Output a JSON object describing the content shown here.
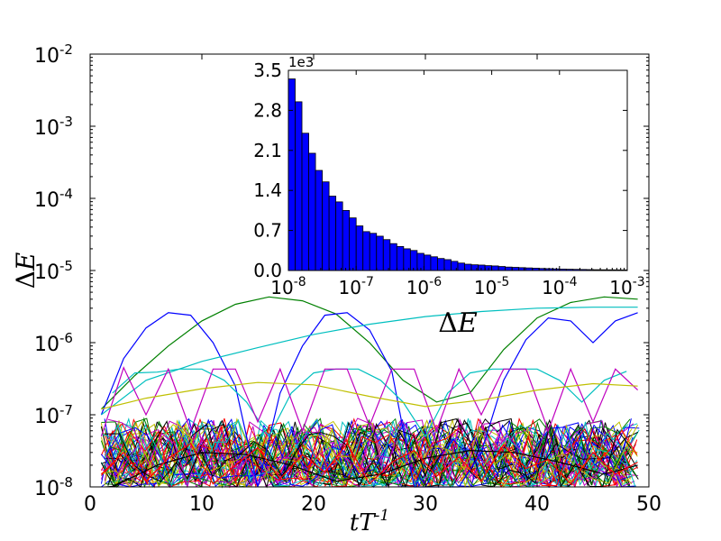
{
  "chart_data": [
    {
      "type": "line",
      "xlabel": "tT^{-1}",
      "ylabel": "ΔE",
      "xlim": [
        0,
        50
      ],
      "ylim": [
        1e-08,
        0.01
      ],
      "yscale": "log",
      "xticks": [
        0,
        10,
        20,
        30,
        40,
        50
      ],
      "xtick_labels": [
        "0",
        "10",
        "20",
        "30",
        "40",
        "50"
      ],
      "yticks": [
        {
          "base": "10",
          "exp": "-8"
        },
        {
          "base": "10",
          "exp": "-7"
        },
        {
          "base": "10",
          "exp": "-6"
        },
        {
          "base": "10",
          "exp": "-5"
        },
        {
          "base": "10",
          "exp": "-4"
        },
        {
          "base": "10",
          "exp": "-3"
        },
        {
          "base": "10",
          "exp": "-2"
        }
      ],
      "series": [
        {
          "name": "green arc",
          "color": "#008000",
          "x": [
            1,
            4,
            7,
            10,
            13,
            16,
            19,
            22,
            25,
            28,
            31,
            34,
            37,
            40,
            43,
            46,
            49
          ],
          "y": [
            1.2e-07,
            3.5e-07,
            9e-07,
            2e-06,
            3.4e-06,
            4.3e-06,
            3.8e-06,
            2.5e-06,
            1e-06,
            3e-07,
            1.5e-07,
            2e-07,
            8e-07,
            2.2e-06,
            3.6e-06,
            4.3e-06,
            4e-06
          ]
        },
        {
          "name": "blue arcs",
          "color": "#0000ff",
          "x": [
            1,
            3,
            5,
            7,
            9,
            11,
            13,
            15,
            17,
            19,
            21,
            23,
            25,
            27,
            29,
            31,
            33,
            35,
            37,
            39,
            41,
            43,
            45,
            47,
            49
          ],
          "y": [
            1e-07,
            6e-07,
            1.6e-06,
            2.6e-06,
            2.4e-06,
            1e-06,
            2.5e-07,
            1e-08,
            2e-07,
            9e-07,
            2.4e-06,
            2.6e-06,
            1.5e-06,
            4e-07,
            1e-08,
            1e-08,
            1e-08,
            3e-08,
            3e-07,
            1.1e-06,
            2.2e-06,
            2e-06,
            1e-06,
            2e-06,
            2.6e-06
          ]
        },
        {
          "name": "cyan rise",
          "color": "#00bfbf",
          "x": [
            1,
            5,
            10,
            15,
            20,
            25,
            30,
            35,
            40,
            45,
            49
          ],
          "y": [
            1e-07,
            3e-07,
            5.5e-07,
            8.5e-07,
            1.3e-06,
            1.8e-06,
            2.3e-06,
            2.7e-06,
            3e-06,
            3.1e-06,
            3.1e-06
          ]
        },
        {
          "name": "cyan plateau",
          "color": "#00bfbf",
          "x": [
            2,
            4,
            6,
            8,
            10,
            12,
            14,
            16,
            18,
            20,
            22,
            24,
            26,
            28,
            30,
            32,
            34,
            36,
            38,
            40,
            42,
            44,
            46,
            48
          ],
          "y": [
            2e-07,
            3.8e-07,
            3.9e-07,
            4.3e-07,
            4.3e-07,
            3e-07,
            1.5e-07,
            5e-08,
            2e-07,
            3.8e-07,
            4.3e-07,
            4.3e-07,
            3e-07,
            1.5e-07,
            5e-08,
            2e-07,
            3.8e-07,
            4.3e-07,
            4.3e-07,
            4.3e-07,
            3e-07,
            1.5e-07,
            3e-07,
            4e-07
          ]
        },
        {
          "name": "magenta spikes",
          "color": "#bf00bf",
          "x": [
            1,
            3,
            5,
            7,
            9,
            11,
            13,
            15,
            17,
            19,
            21,
            23,
            25,
            27,
            29,
            31,
            33,
            35,
            37,
            39,
            41,
            43,
            45,
            47,
            49
          ],
          "y": [
            5e-08,
            4.5e-07,
            1e-07,
            4.3e-07,
            6e-08,
            4.3e-07,
            4.3e-07,
            8e-08,
            4.3e-07,
            6e-08,
            4.3e-07,
            4.3e-07,
            7e-08,
            4.3e-07,
            4.3e-07,
            6e-08,
            4.3e-07,
            1e-07,
            4.3e-07,
            4.3e-07,
            6e-08,
            4.3e-07,
            8e-08,
            4.3e-07,
            2.2e-07
          ]
        },
        {
          "name": "olive arc",
          "color": "#bfbf00",
          "x": [
            1,
            5,
            10,
            15,
            20,
            25,
            30,
            35,
            40,
            45,
            49
          ],
          "y": [
            1.2e-07,
            1.7e-07,
            2.3e-07,
            2.8e-07,
            2.6e-07,
            1.8e-07,
            1.3e-07,
            1.6e-07,
            2.2e-07,
            2.7e-07,
            2.5e-07
          ]
        },
        {
          "name": "black arc",
          "color": "#000000",
          "x": [
            2,
            6,
            10,
            14,
            18,
            22,
            26,
            30,
            34,
            38,
            42,
            46,
            49
          ],
          "y": [
            1e-08,
            2e-08,
            3e-08,
            2.8e-08,
            2e-08,
            1.2e-08,
            1.5e-08,
            2.5e-08,
            3.2e-08,
            3e-08,
            2.2e-08,
            1.5e-08,
            2e-08
          ]
        },
        {
          "name": "red low",
          "color": "#ff0000",
          "x": [
            1,
            3,
            5,
            7,
            9,
            11,
            13,
            15,
            17,
            19,
            21,
            23,
            25,
            27,
            29,
            31,
            33,
            35,
            37,
            39,
            41,
            43,
            45,
            47,
            49
          ],
          "y": [
            1.5e-08,
            3e-08,
            1.2e-08,
            2.5e-08,
            4e-08,
            1.1e-08,
            2e-08,
            3.5e-08,
            1.3e-08,
            2.8e-08,
            1.6e-08,
            4e-08,
            1.1e-08,
            2.2e-08,
            3.2e-08,
            1.4e-08,
            2.6e-08,
            1.2e-08,
            3.8e-08,
            1.8e-08,
            2.4e-08,
            1.1e-08,
            3e-08,
            1.5e-08,
            2.2e-08
          ]
        },
        {
          "name": "noisy bundle",
          "color": "mixed",
          "x": [
            1,
            49
          ],
          "y": [
            1e-08,
            2e-07
          ]
        }
      ]
    },
    {
      "type": "bar",
      "subtype": "histogram",
      "xlabel": "ΔE",
      "xscale": "log",
      "xlim": [
        1e-08,
        0.001
      ],
      "ylim": [
        0,
        3500
      ],
      "y_offset_label": "1e3",
      "yticks": [
        "0.0",
        "0.7",
        "1.4",
        "2.1",
        "2.8",
        "3.5"
      ],
      "xticks": [
        {
          "base": "10",
          "exp": "-8"
        },
        {
          "base": "10",
          "exp": "-7"
        },
        {
          "base": "10",
          "exp": "-6"
        },
        {
          "base": "10",
          "exp": "-5"
        },
        {
          "base": "10",
          "exp": "-4"
        },
        {
          "base": "10",
          "exp": "-3"
        }
      ],
      "bar_color": "#0000ff",
      "bin_count": 50,
      "values": [
        3350,
        2950,
        2400,
        2050,
        1750,
        1550,
        1300,
        1200,
        1050,
        920,
        780,
        680,
        650,
        600,
        540,
        470,
        420,
        380,
        350,
        300,
        270,
        240,
        210,
        190,
        160,
        130,
        110,
        100,
        95,
        85,
        80,
        70,
        60,
        55,
        50,
        45,
        40,
        35,
        32,
        28,
        25,
        22,
        20,
        18,
        16,
        14,
        13,
        12,
        11,
        10
      ]
    }
  ]
}
